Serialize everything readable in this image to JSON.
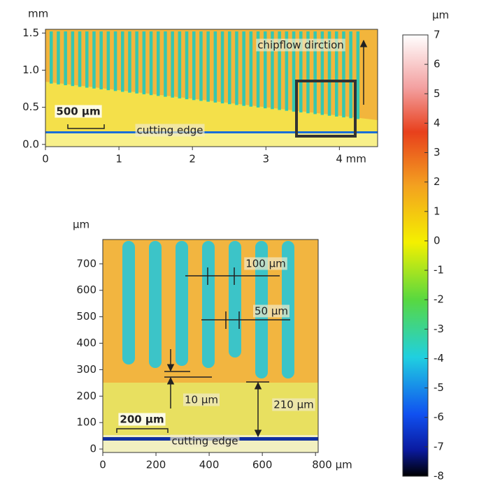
{
  "chart_data": [
    {
      "type": "heatmap",
      "y_label": "mm",
      "xlim": [
        0,
        4.52
      ],
      "ylim": [
        -0.03,
        1.55
      ],
      "xticks": [
        0,
        1,
        2,
        3,
        {
          "value": 4,
          "label": "4 mm"
        }
      ],
      "yticks": [
        {
          "value": 0,
          "label": "0.0"
        },
        {
          "value": 0.5,
          "label": "0.5"
        },
        {
          "value": 1,
          "label": "1.0"
        },
        {
          "value": 1.5,
          "label": "1.5"
        }
      ],
      "annotations": [
        "chipflow dirction",
        "500 μm",
        "cutting edge"
      ]
    },
    {
      "type": "heatmap",
      "y_label": "μm",
      "xlim": [
        0,
        810
      ],
      "ylim": [
        -13,
        792
      ],
      "xticks": [
        0,
        200,
        400,
        600,
        {
          "value": 800,
          "label": "800 μm"
        }
      ],
      "yticks": [
        0,
        100,
        200,
        300,
        400,
        500,
        600,
        700
      ],
      "annotations": [
        "100 μm",
        "50 μm",
        "10 μm",
        "210 μm",
        "200 μm",
        "cutting edge"
      ]
    },
    {
      "type": "colorbar",
      "y_label": "μm",
      "ylim": [
        -8,
        7
      ],
      "yticks": [
        -8,
        -7,
        -6,
        -5,
        -4,
        -3,
        -2,
        -1,
        0,
        1,
        2,
        3,
        4,
        5,
        6,
        7
      ]
    }
  ]
}
